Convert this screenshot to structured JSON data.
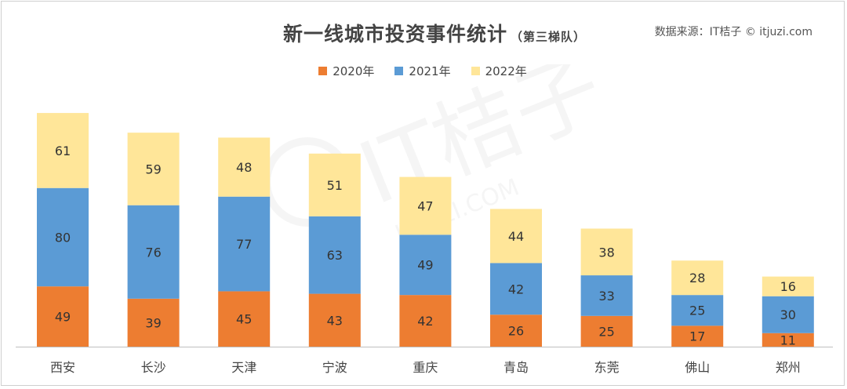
{
  "title": "新一线城市投资事件统计",
  "subtitle": "（第三梯队）",
  "source": "数据来源：IT桔子 © itjuzi.com",
  "watermark_text": "IT桔子",
  "watermark_url": "ITJUZI.COM",
  "colors": {
    "2020年": "#ED7D31",
    "2021年": "#5B9BD5",
    "2022年": "#FFE699"
  },
  "chart_data": {
    "type": "bar",
    "stacked": true,
    "categories": [
      "西安",
      "长沙",
      "天津",
      "宁波",
      "重庆",
      "青岛",
      "东莞",
      "佛山",
      "郑州"
    ],
    "series": [
      {
        "name": "2020年",
        "values": [
          49,
          39,
          45,
          43,
          42,
          26,
          25,
          17,
          11
        ]
      },
      {
        "name": "2021年",
        "values": [
          80,
          76,
          77,
          63,
          49,
          42,
          33,
          25,
          30
        ]
      },
      {
        "name": "2022年",
        "values": [
          61,
          59,
          48,
          51,
          47,
          44,
          38,
          28,
          16
        ]
      }
    ],
    "title": "新一线城市投资事件统计",
    "xlabel": "",
    "ylabel": "",
    "legend": "top-center",
    "grid": false
  }
}
